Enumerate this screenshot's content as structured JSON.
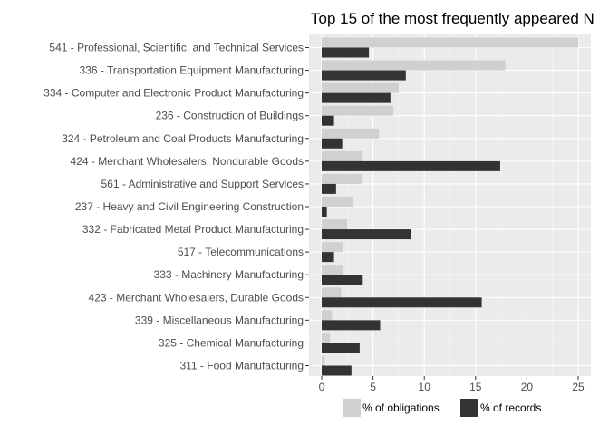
{
  "chart_data": {
    "type": "bar",
    "orientation": "horizontal",
    "title": "Top 15 of the most frequently appeared N",
    "categories": [
      "541  -  Professional, Scientific, and Technical Services",
      "336  -  Transportation Equipment Manufacturing",
      "334  -  Computer and Electronic Product Manufacturing",
      "236  -  Construction of Buildings",
      "324  -  Petroleum and Coal Products Manufacturing",
      "424  -  Merchant Wholesalers, Nondurable Goods",
      "561  -  Administrative and Support Services",
      "237  -  Heavy and Civil Engineering Construction",
      "332  -  Fabricated Metal Product Manufacturing",
      "517  -  Telecommunications",
      "333  -  Machinery Manufacturing",
      "423  -  Merchant Wholesalers, Durable Goods",
      "339  -  Miscellaneous Manufacturing",
      "325  -  Chemical Manufacturing",
      "311  -  Food Manufacturing"
    ],
    "series": [
      {
        "name": "% of obligations",
        "color": "#d0d0d0",
        "values": [
          25.0,
          17.9,
          7.5,
          7.0,
          5.6,
          4.0,
          3.9,
          3.0,
          2.5,
          2.1,
          2.1,
          1.9,
          1.0,
          0.8,
          0.3
        ]
      },
      {
        "name": "% of records",
        "color": "#333333",
        "values": [
          4.6,
          8.2,
          6.7,
          1.2,
          2.0,
          17.4,
          1.4,
          0.5,
          8.7,
          1.2,
          4.0,
          15.6,
          5.7,
          3.7,
          2.9
        ]
      }
    ],
    "xlim": [
      0,
      26
    ],
    "xticks": [
      0,
      5,
      10,
      15,
      20,
      25
    ],
    "xlabel": "",
    "ylabel": "",
    "grid": true,
    "legend_position": "bottom"
  }
}
